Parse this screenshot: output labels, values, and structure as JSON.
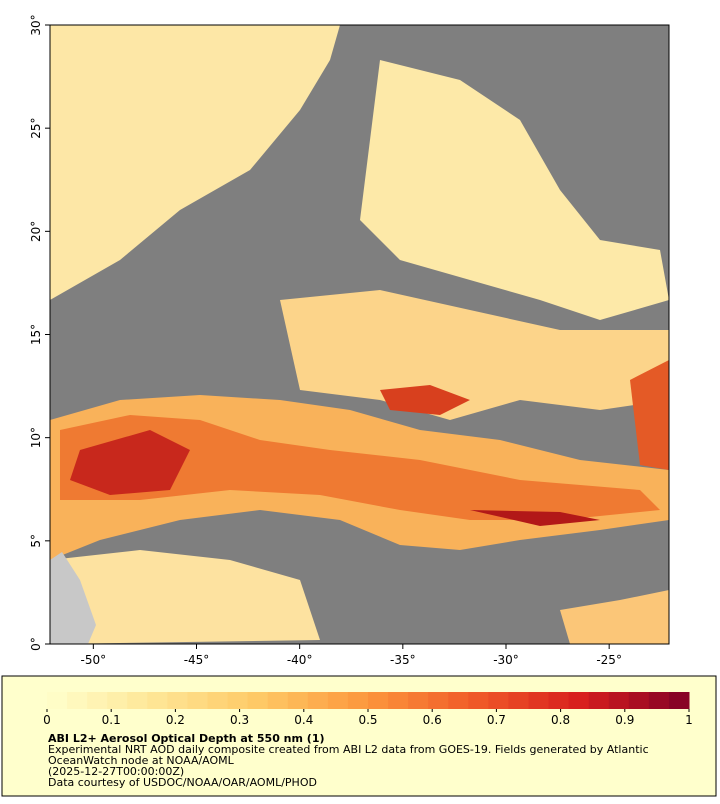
{
  "map": {
    "xlim": [
      -52.1,
      -22.1
    ],
    "ylim": [
      0,
      30
    ],
    "xticks": [
      {
        "value": -50,
        "label": "-50°"
      },
      {
        "value": -45,
        "label": "-45°"
      },
      {
        "value": -40,
        "label": "-40°"
      },
      {
        "value": -35,
        "label": "-35°"
      },
      {
        "value": -30,
        "label": "-30°"
      },
      {
        "value": -25,
        "label": "-25°"
      }
    ],
    "yticks": [
      {
        "value": 0,
        "label": "0°"
      },
      {
        "value": 5,
        "label": "5°"
      },
      {
        "value": 10,
        "label": "10°"
      },
      {
        "value": 15,
        "label": "15°"
      },
      {
        "value": 20,
        "label": "20°"
      },
      {
        "value": 25,
        "label": "25°"
      },
      {
        "value": 30,
        "label": "30°"
      }
    ]
  },
  "colorbar": {
    "clim": [
      0,
      1
    ],
    "ticks": [
      0,
      0.1,
      0.2,
      0.3,
      0.4,
      0.5,
      0.6,
      0.7,
      0.8,
      0.9,
      1
    ]
  },
  "caption": {
    "title": "ABI L2+ Aerosol Optical Depth at 550 nm (1)",
    "lines": [
      "Experimental NRT AOD daily composite created from ABI L2 data from GOES-19. Fields generated by Atlantic",
      "OceanWatch node at NOAA/AOML",
      "(2025-12-27T00:00:00Z)",
      "Data courtesy of USDOC/NOAA/OAR/AOML/PHOD"
    ]
  }
}
